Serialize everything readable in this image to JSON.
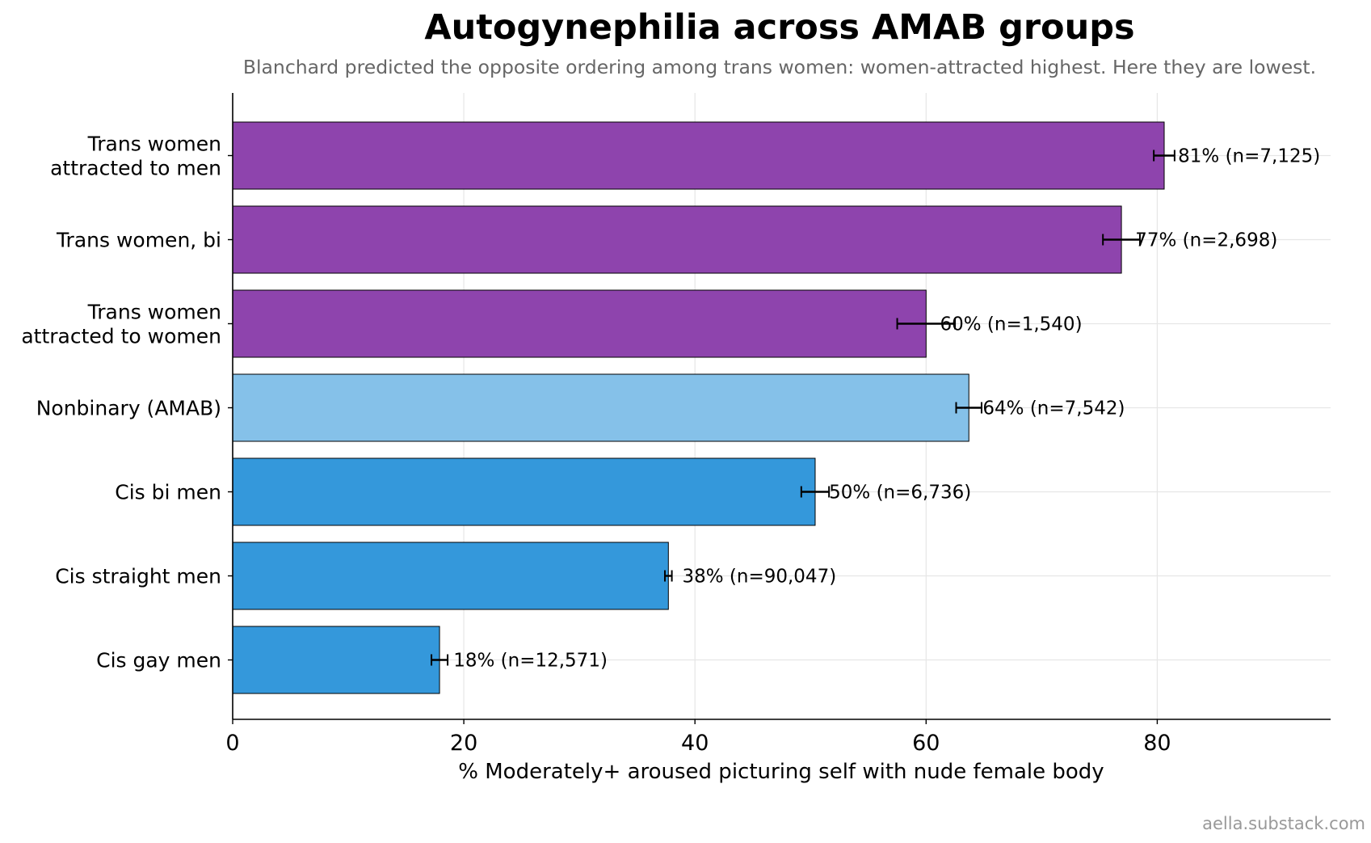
{
  "chart_data": {
    "type": "bar",
    "orientation": "horizontal",
    "title": "Autogynephilia across AMAB groups",
    "subtitle": "Blanchard predicted the opposite ordering among trans women: women-attracted highest. Here they are lowest.",
    "xlabel": "% Moderately+ aroused picturing self with nude female body",
    "ylabel": "",
    "xlim": [
      0,
      95
    ],
    "xticks": [
      0,
      20,
      40,
      60,
      80
    ],
    "grid": true,
    "categories": [
      "Trans women attracted to men",
      "Trans women, bi",
      "Trans women attracted to women",
      "Nonbinary (AMAB)",
      "Cis bi men",
      "Cis straight men",
      "Cis gay men"
    ],
    "category_label_lines": [
      [
        "Trans women",
        "attracted to men"
      ],
      [
        "Trans women, bi"
      ],
      [
        "Trans women",
        "attracted to women"
      ],
      [
        "Nonbinary (AMAB)"
      ],
      [
        "Cis bi men"
      ],
      [
        "Cis straight men"
      ],
      [
        "Cis gay men"
      ]
    ],
    "values": [
      80.6,
      76.9,
      60.0,
      63.7,
      50.4,
      37.7,
      17.9
    ],
    "error_low": [
      79.7,
      75.3,
      57.5,
      62.6,
      49.2,
      37.4,
      17.2
    ],
    "error_high": [
      81.5,
      78.5,
      62.5,
      64.8,
      51.6,
      38.0,
      18.6
    ],
    "data_labels": [
      "81%  (n=7,125)",
      "77%  (n=2,698)",
      "60%  (n=1,540)",
      "64%  (n=7,542)",
      "50%  (n=6,736)",
      "38%  (n=90,047)",
      "18%  (n=12,571)"
    ],
    "bar_colors": [
      "#8e44ad",
      "#8e44ad",
      "#8e44ad",
      "#85c1e9",
      "#3498db",
      "#3498db",
      "#3498db"
    ],
    "colors": {
      "trans_women": "#8e44ad",
      "nonbinary": "#85c1e9",
      "cis_men": "#3498db",
      "errorbar": "#000000",
      "bar_edge": "#000000",
      "grid": "#e6e6e6",
      "subtitle": "#666666",
      "watermark": "#999999"
    }
  },
  "watermark": "aella.substack.com"
}
